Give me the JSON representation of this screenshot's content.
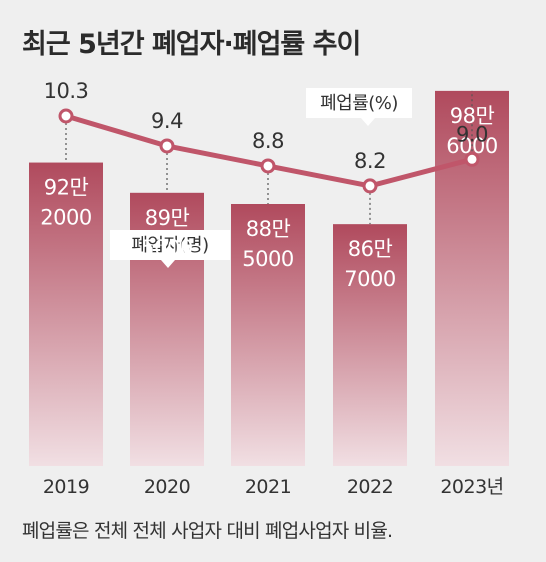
{
  "title": "최근 5년간 폐업자·폐업률 추이",
  "footnote": "폐업률은 전체 전체 사업자 대비 폐업사업자 비율.",
  "chart_data": {
    "type": "bar+line",
    "categories": [
      "2019",
      "2020",
      "2021",
      "2022",
      "2023년"
    ],
    "bar_series": {
      "name": "폐업자(명)",
      "values": [
        922000,
        895000,
        885000,
        867000,
        986000
      ],
      "labels": [
        [
          "92만",
          "2000"
        ],
        [
          "89만",
          "5000"
        ],
        [
          "88만",
          "5000"
        ],
        [
          "86만",
          "7000"
        ],
        [
          "98만",
          "6000"
        ]
      ]
    },
    "line_series": {
      "name": "폐업률(%)",
      "values": [
        10.3,
        9.4,
        8.8,
        8.2,
        9.0
      ],
      "labels": [
        "10.3",
        "9.4",
        "8.8",
        "8.2",
        "9.0"
      ]
    },
    "colors": {
      "bar_top": "#b04a5d",
      "bar_bottom": "#f1dfe3",
      "line": "#c0566a",
      "background": "#efefef"
    }
  }
}
